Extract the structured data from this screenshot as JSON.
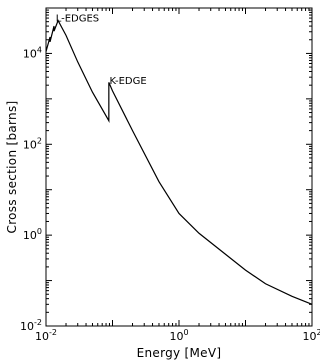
{
  "chart_data": {
    "type": "line",
    "xlabel": "Energy [MeV]",
    "ylabel": "Cross section [barns]",
    "xscale": "log",
    "yscale": "log",
    "xlim": [
      0.01,
      100
    ],
    "ylim": [
      0.01,
      100000
    ],
    "grid": false,
    "x_ticks": [
      {
        "base": "10",
        "exp": "-2"
      },
      {
        "base": "10",
        "exp": "0"
      },
      {
        "base": "10",
        "exp": "2"
      }
    ],
    "y_ticks": [
      {
        "base": "10",
        "exp": "-2"
      },
      {
        "base": "10",
        "exp": "0"
      },
      {
        "base": "10",
        "exp": "2"
      },
      {
        "base": "10",
        "exp": "4"
      }
    ],
    "series": [
      {
        "points": [
          [
            0.01,
            11000
          ],
          [
            0.0115,
            23000
          ],
          [
            0.0115,
            18000
          ],
          [
            0.0132,
            40000
          ],
          [
            0.0132,
            31000
          ],
          [
            0.0152,
            53000
          ],
          [
            0.02,
            25000
          ],
          [
            0.03,
            6500
          ],
          [
            0.05,
            1400
          ],
          [
            0.0881,
            330
          ],
          [
            0.0881,
            2300
          ],
          [
            0.1,
            1500
          ],
          [
            0.2,
            200
          ],
          [
            0.5,
            15
          ],
          [
            1,
            3
          ],
          [
            2,
            1.1
          ],
          [
            5,
            0.38
          ],
          [
            10,
            0.17
          ],
          [
            20,
            0.085
          ],
          [
            50,
            0.045
          ],
          [
            100,
            0.03
          ]
        ]
      }
    ],
    "annotations": [
      {
        "text": "L-EDGES",
        "x": 0.014,
        "y": 50000
      },
      {
        "text": "K-EDGE",
        "x": 0.09,
        "y": 2100
      }
    ]
  }
}
